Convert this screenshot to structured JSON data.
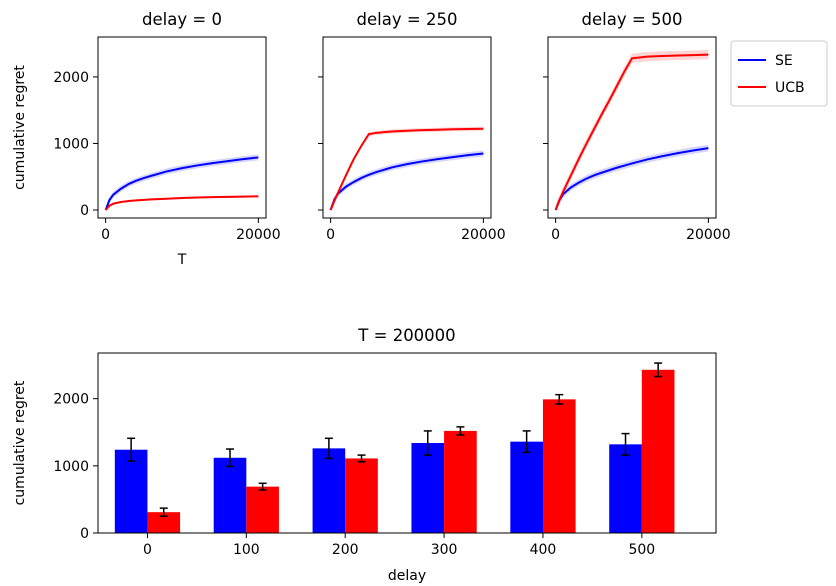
{
  "colors": {
    "SE": "#0000ff",
    "UCB": "#ff0000",
    "SE_band": "#b3b3ff",
    "UCB_band": "#ffb3b3",
    "errorbar": "#000000"
  },
  "legend": [
    "SE",
    "UCB"
  ],
  "chart_data": [
    {
      "type": "line",
      "title": "delay = 0",
      "xlabel": "T",
      "ylabel": "cumulative regret",
      "xlim": [
        -1000,
        21000
      ],
      "ylim": [
        -120,
        2600
      ],
      "xticks": [
        0,
        20000
      ],
      "yticks": [
        0,
        1000,
        2000
      ],
      "series": [
        {
          "name": "SE",
          "band": 45,
          "x": [
            0,
            500,
            1000,
            2000,
            3000,
            4000,
            5000,
            6000,
            8000,
            10000,
            12000,
            14000,
            16000,
            18000,
            20000
          ],
          "y": [
            0,
            150,
            230,
            320,
            390,
            440,
            480,
            515,
            580,
            630,
            670,
            705,
            735,
            765,
            790
          ]
        },
        {
          "name": "UCB",
          "band": 15,
          "x": [
            0,
            500,
            1000,
            2000,
            3000,
            4000,
            6000,
            8000,
            10000,
            12000,
            14000,
            16000,
            18000,
            20000
          ],
          "y": [
            0,
            65,
            95,
            120,
            135,
            145,
            160,
            170,
            180,
            188,
            194,
            198,
            202,
            205
          ]
        }
      ]
    },
    {
      "type": "line",
      "title": "delay = 250",
      "xlabel": "",
      "ylabel": "",
      "xlim": [
        -1000,
        21000
      ],
      "ylim": [
        -120,
        2600
      ],
      "xticks": [
        0,
        20000
      ],
      "yticks": [
        0,
        1000,
        2000
      ],
      "series": [
        {
          "name": "SE",
          "band": 45,
          "x": [
            0,
            500,
            1000,
            2000,
            3000,
            4000,
            5000,
            6000,
            8000,
            10000,
            12000,
            14000,
            16000,
            18000,
            20000
          ],
          "y": [
            0,
            160,
            250,
            350,
            420,
            480,
            530,
            570,
            640,
            690,
            730,
            765,
            795,
            825,
            850
          ]
        },
        {
          "name": "UCB",
          "band": 30,
          "x": [
            0,
            500,
            1000,
            2000,
            3000,
            4000,
            5000,
            6000,
            8000,
            10000,
            12000,
            14000,
            16000,
            18000,
            20000
          ],
          "y": [
            0,
            140,
            270,
            520,
            760,
            960,
            1140,
            1160,
            1180,
            1192,
            1200,
            1207,
            1213,
            1218,
            1222
          ]
        }
      ]
    },
    {
      "type": "line",
      "title": "delay = 500",
      "xlabel": "",
      "ylabel": "",
      "xlim": [
        -1000,
        21000
      ],
      "ylim": [
        -120,
        2600
      ],
      "xticks": [
        0,
        20000
      ],
      "yticks": [
        0,
        1000,
        2000
      ],
      "series": [
        {
          "name": "SE",
          "band": 50,
          "x": [
            0,
            500,
            1000,
            2000,
            3000,
            4000,
            5000,
            6000,
            8000,
            10000,
            12000,
            14000,
            16000,
            18000,
            20000
          ],
          "y": [
            0,
            150,
            240,
            340,
            410,
            470,
            520,
            560,
            635,
            700,
            760,
            810,
            855,
            895,
            930
          ]
        },
        {
          "name": "UCB",
          "band": 70,
          "x": [
            0,
            500,
            1000,
            2000,
            3000,
            4000,
            5000,
            6000,
            7000,
            8000,
            9000,
            10000,
            12000,
            14000,
            16000,
            18000,
            20000
          ],
          "y": [
            0,
            150,
            280,
            520,
            760,
            990,
            1210,
            1430,
            1640,
            1860,
            2080,
            2280,
            2305,
            2315,
            2322,
            2328,
            2335
          ]
        }
      ]
    },
    {
      "type": "bar",
      "title": "T = 200000",
      "xlabel": "delay",
      "ylabel": "cumulative regret",
      "ylim": [
        0,
        2680
      ],
      "yticks": [
        0,
        1000,
        2000
      ],
      "categories": [
        "0",
        "100",
        "200",
        "300",
        "400",
        "500"
      ],
      "series": [
        {
          "name": "SE",
          "values": [
            1240,
            1120,
            1260,
            1340,
            1360,
            1320
          ],
          "err": [
            170,
            130,
            150,
            180,
            160,
            160
          ]
        },
        {
          "name": "UCB",
          "values": [
            310,
            690,
            1110,
            1520,
            1990,
            2430
          ],
          "err": [
            60,
            50,
            50,
            60,
            70,
            100
          ]
        }
      ]
    }
  ]
}
